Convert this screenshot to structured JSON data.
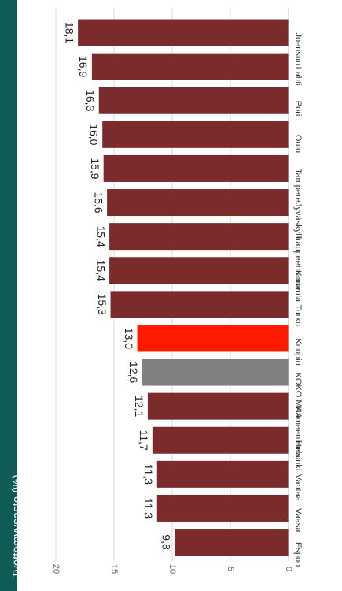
{
  "title": "Työttömyysaste (%)",
  "colors": {
    "default": "#7b2b2b",
    "highlight": "#ff1a00",
    "average": "#808080",
    "header": "#0f5c57",
    "grid": "#d9d9d9"
  },
  "chart_data": {
    "type": "bar",
    "orientation": "horizontal",
    "categories": [
      "Joensuu",
      "Lahti",
      "Pori",
      "Oulu",
      "Tampere",
      "Jyväskylä",
      "Lappeenranta",
      "Kouvola",
      "Turku",
      "Kuopio",
      "KOKO MAA",
      "Hämeenlinna",
      "Helsinki",
      "Vantaa",
      "Vaasa",
      "Espoo"
    ],
    "values": [
      18.1,
      16.9,
      16.3,
      16.0,
      15.9,
      15.6,
      15.4,
      15.4,
      15.3,
      13.0,
      12.6,
      12.1,
      11.7,
      11.3,
      11.3,
      9.8
    ],
    "value_labels": [
      "18,1",
      "16,9",
      "16,3",
      "16,0",
      "15,9",
      "15,6",
      "15,4",
      "15,4",
      "15,3",
      "13,0",
      "12,6",
      "12,1",
      "11,7",
      "11,3",
      "11,3",
      "9,8"
    ],
    "highlight": "Kuopio",
    "average": "KOKO MAA",
    "xlim": [
      0,
      20
    ],
    "ticks": [
      "0",
      "5",
      "10",
      "15",
      "20"
    ],
    "grid": true
  }
}
